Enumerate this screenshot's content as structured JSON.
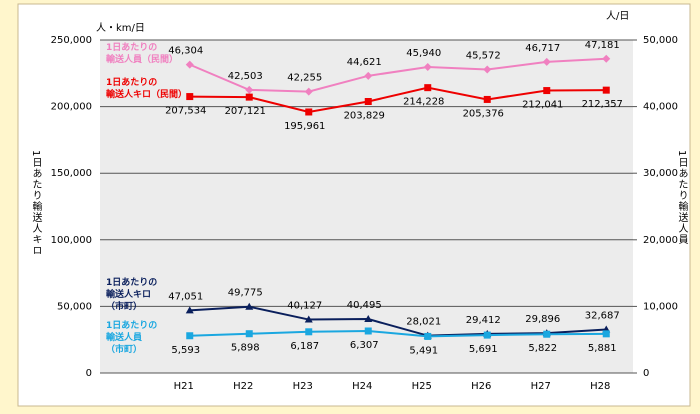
{
  "chart_data": {
    "type": "line",
    "y_unit": "人・km/日",
    "y2_unit": "人/日",
    "ylabel": "1日あたり輸送人キロ",
    "y2label": "1日あたり輸送人員",
    "categories": [
      "H21",
      "H22",
      "H23",
      "H24",
      "H25",
      "H26",
      "H27",
      "H28"
    ],
    "ylim": [
      0,
      250000
    ],
    "yticks": [
      0,
      {
        "value": 50000,
        "label": "50,000"
      },
      {
        "value": 100000,
        "label": "100,000"
      },
      {
        "value": 150000,
        "label": "150,000"
      },
      {
        "value": 200000,
        "label": "200,000"
      },
      {
        "value": 250000,
        "label": "250,000"
      }
    ],
    "y2lim": [
      0,
      50000
    ],
    "y2ticks": [
      0,
      {
        "value": 10000,
        "label": "10,000"
      },
      {
        "value": 20000,
        "label": "20,000"
      },
      {
        "value": 30000,
        "label": "30,000"
      },
      {
        "value": 40000,
        "label": "40,000"
      },
      {
        "value": 50000,
        "label": "50,000"
      }
    ],
    "grid": true,
    "series": [
      {
        "name": "1日あたりの\n輸送人員（民間）",
        "color": "#f080c0",
        "marker": "diamond",
        "axis": "y2",
        "values": [
          46304,
          42503,
          42255,
          44621,
          45940,
          45572,
          46717,
          47181
        ],
        "value_labels": [
          "46,304",
          "42,503",
          "42,255",
          "44,621",
          "45,940",
          "45,572",
          "46,717",
          "47,181"
        ]
      },
      {
        "name": "1日あたりの\n輸送人キロ（民間）",
        "color": "#ee0000",
        "marker": "square",
        "axis": "y",
        "values": [
          207534,
          207121,
          195961,
          203829,
          214228,
          205376,
          212041,
          212357
        ],
        "value_labels": [
          "207,534",
          "207,121",
          "195,961",
          "203,829",
          "214,228",
          "205,376",
          "212,041",
          "212,357"
        ]
      },
      {
        "name": "1日あたりの\n輸送人キロ\n（市町）",
        "color": "#0a1f5c",
        "marker": "triangle",
        "axis": "y",
        "values": [
          47051,
          49775,
          40127,
          40495,
          28021,
          29412,
          29896,
          32687
        ],
        "value_labels": [
          "47,051",
          "49,775",
          "40,127",
          "40,495",
          "28,021",
          "29,412",
          "29,896",
          "32,687"
        ]
      },
      {
        "name": "1日あたりの\n輸送人員\n（市町）",
        "color": "#1aa7e0",
        "marker": "square",
        "axis": "y2",
        "values": [
          5593,
          5898,
          6187,
          6307,
          5491,
          5691,
          5822,
          5881
        ],
        "value_labels": [
          "5,593",
          "5,898",
          "6,187",
          "6,307",
          "5,491",
          "5,691",
          "5,822",
          "5,881"
        ]
      }
    ]
  }
}
